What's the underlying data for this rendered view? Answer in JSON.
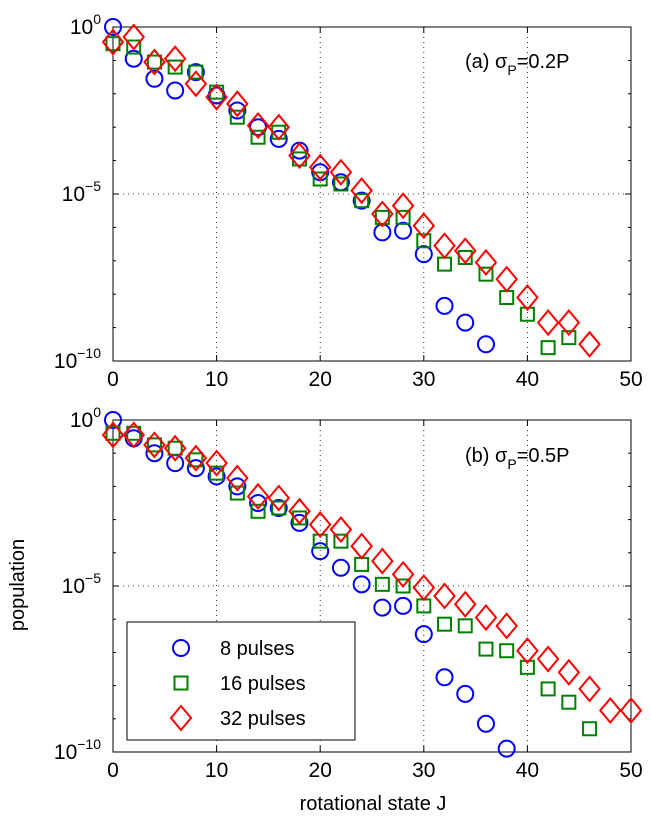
{
  "figure": {
    "xlabel": "rotational state J",
    "ylabel": "population"
  },
  "chart_data": [
    {
      "type": "scatter",
      "annotation": {
        "prefix": "(a) σ",
        "sub": "P",
        "suffix": "=0.2P"
      },
      "xlim": [
        0,
        50
      ],
      "ylim_log10": [
        -10,
        0
      ],
      "yscale": "log",
      "grid": true,
      "x_ticks": [
        "0",
        "10",
        "20",
        "30",
        "40",
        "50"
      ],
      "y_ticks": [
        {
          "base": "10",
          "exp": "0"
        },
        {
          "base": "10",
          "exp": "−5"
        },
        {
          "base": "10",
          "exp": "−10"
        }
      ],
      "series": [
        {
          "name": "8 pulses",
          "marker": "circle",
          "color": "#0000ff",
          "x": [
            0,
            2,
            4,
            6,
            8,
            10,
            12,
            14,
            16,
            18,
            20,
            22,
            24,
            26,
            28,
            30,
            32,
            34,
            36
          ],
          "log10_y": [
            0.0,
            -0.95,
            -1.55,
            -1.9,
            -1.35,
            -2.05,
            -2.5,
            -3.0,
            -3.35,
            -3.7,
            -4.35,
            -4.65,
            -5.2,
            -6.15,
            -6.1,
            -6.8,
            -8.35,
            -8.85,
            -9.5
          ]
        },
        {
          "name": "16 pulses",
          "marker": "square",
          "color": "#008000",
          "x": [
            0,
            2,
            4,
            6,
            8,
            10,
            12,
            14,
            16,
            18,
            20,
            22,
            24,
            26,
            28,
            30,
            32,
            34,
            36,
            38,
            40,
            42,
            44
          ],
          "log10_y": [
            -0.5,
            -0.6,
            -1.05,
            -1.2,
            -1.35,
            -1.95,
            -2.7,
            -3.3,
            -3.15,
            -3.95,
            -4.55,
            -4.7,
            -5.2,
            -5.7,
            -5.7,
            -6.4,
            -7.1,
            -6.9,
            -7.4,
            -8.1,
            -8.6,
            -9.6,
            -9.3
          ]
        },
        {
          "name": "32 pulses",
          "marker": "diamond",
          "color": "#ff0000",
          "x": [
            0,
            2,
            4,
            6,
            8,
            10,
            12,
            14,
            16,
            18,
            20,
            22,
            24,
            26,
            28,
            30,
            32,
            34,
            36,
            38,
            40,
            42,
            44,
            46
          ],
          "log10_y": [
            -0.45,
            -0.3,
            -1.05,
            -0.95,
            -1.7,
            -2.1,
            -2.3,
            -2.95,
            -3.0,
            -3.85,
            -4.2,
            -4.35,
            -4.9,
            -5.6,
            -5.35,
            -5.95,
            -6.55,
            -6.7,
            -7.05,
            -7.55,
            -8.1,
            -8.85,
            -8.85,
            -9.5
          ]
        }
      ]
    },
    {
      "type": "scatter",
      "annotation": {
        "prefix": "(b) σ",
        "sub": "P",
        "suffix": "=0.5P"
      },
      "xlim": [
        0,
        50
      ],
      "ylim_log10": [
        -10,
        0
      ],
      "yscale": "log",
      "grid": true,
      "legend_position": "bottom-left",
      "x_ticks": [
        "0",
        "10",
        "20",
        "30",
        "40",
        "50"
      ],
      "y_ticks": [
        {
          "base": "10",
          "exp": "0"
        },
        {
          "base": "10",
          "exp": "−5"
        },
        {
          "base": "10",
          "exp": "−10"
        }
      ],
      "series": [
        {
          "name": "8 pulses",
          "marker": "circle",
          "color": "#0000ff",
          "x": [
            0,
            2,
            4,
            6,
            8,
            10,
            12,
            14,
            16,
            18,
            20,
            22,
            24,
            26,
            28,
            30,
            32,
            34,
            36,
            38
          ],
          "log10_y": [
            0.0,
            -0.55,
            -1.0,
            -1.3,
            -1.45,
            -1.7,
            -2.0,
            -2.5,
            -2.65,
            -3.1,
            -3.95,
            -4.45,
            -4.95,
            -5.65,
            -5.6,
            -6.45,
            -7.75,
            -8.25,
            -9.15,
            -9.9
          ]
        },
        {
          "name": "16 pulses",
          "marker": "square",
          "color": "#008000",
          "x": [
            0,
            2,
            4,
            6,
            8,
            10,
            12,
            14,
            16,
            18,
            20,
            22,
            24,
            26,
            28,
            30,
            32,
            34,
            36,
            38,
            40,
            42,
            44,
            46
          ],
          "log10_y": [
            -0.4,
            -0.4,
            -0.75,
            -0.85,
            -1.2,
            -1.6,
            -2.2,
            -2.75,
            -2.65,
            -2.95,
            -3.65,
            -3.65,
            -4.35,
            -4.95,
            -5.0,
            -5.6,
            -6.15,
            -6.2,
            -6.9,
            -6.95,
            -7.45,
            -8.1,
            -8.5,
            -9.3
          ]
        },
        {
          "name": "32 pulses",
          "marker": "diamond",
          "color": "#ff0000",
          "x": [
            0,
            2,
            4,
            6,
            8,
            10,
            12,
            14,
            16,
            18,
            20,
            22,
            24,
            26,
            28,
            30,
            32,
            34,
            36,
            38,
            40,
            42,
            44,
            46,
            48,
            50
          ],
          "log10_y": [
            -0.45,
            -0.45,
            -0.75,
            -0.85,
            -1.15,
            -1.3,
            -1.75,
            -2.3,
            -2.35,
            -2.75,
            -3.15,
            -3.3,
            -3.8,
            -4.25,
            -4.65,
            -5.05,
            -5.3,
            -5.55,
            -5.95,
            -6.2,
            -6.95,
            -7.2,
            -7.6,
            -8.1,
            -8.75,
            -8.75
          ]
        }
      ]
    }
  ]
}
